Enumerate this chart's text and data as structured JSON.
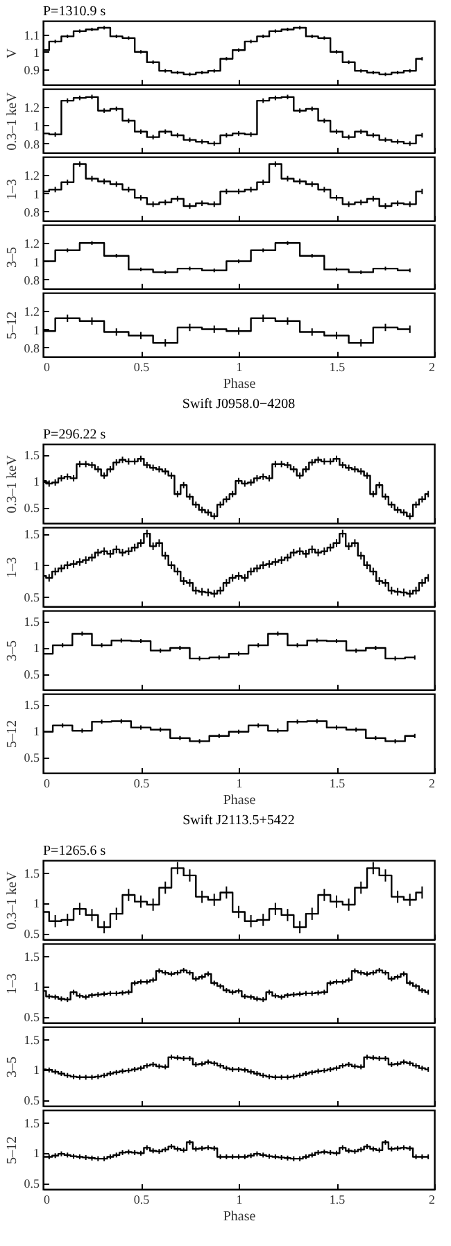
{
  "chart_data": [
    {
      "type": "step",
      "subtitle": "P=1310.9 s",
      "ylabel": "V",
      "tick_labels": "y",
      "color": "#000000",
      "xlim": [
        0,
        2
      ],
      "xticks": [
        0,
        0.5,
        1,
        1.5,
        2
      ],
      "ylim": [
        0.81,
        1.18
      ],
      "yticks": [
        0.9,
        1,
        1.1
      ],
      "x": [
        0,
        0.0625,
        0.125,
        0.1875,
        0.25,
        0.3125,
        0.375,
        0.4375,
        0.5,
        0.5625,
        0.625,
        0.6875,
        0.75,
        0.8125,
        0.875,
        0.9375,
        1,
        1.0625,
        1.125,
        1.1875,
        1.25,
        1.3125,
        1.375,
        1.4375,
        1.5,
        1.5625,
        1.625,
        1.6875,
        1.75,
        1.8125,
        1.875,
        1.9375
      ],
      "values": [
        1.01,
        1.06,
        1.09,
        1.12,
        1.13,
        1.14,
        1.09,
        1.08,
        1.0,
        0.94,
        0.89,
        0.88,
        0.87,
        0.88,
        0.89,
        0.96,
        1.01,
        1.06,
        1.09,
        1.12,
        1.13,
        1.14,
        1.09,
        1.08,
        1.0,
        0.94,
        0.89,
        0.88,
        0.87,
        0.88,
        0.89,
        0.96
      ],
      "errors": [
        null,
        0.01,
        0.01,
        0.01,
        0.01,
        0.01,
        0.01,
        0.01,
        0.01,
        0.01,
        0.01,
        0.01,
        0.01,
        0.01,
        0.01,
        0.01,
        0.01,
        0.01,
        0.01,
        0.01,
        0.01,
        0.01,
        0.01,
        0.01,
        0.01,
        0.01,
        0.01,
        0.01,
        0.01,
        0.01,
        0.01,
        0.01
      ]
    },
    {
      "type": "step",
      "ylabel": "0.3–1 keV",
      "tick_labels": "y",
      "color": "#000000",
      "xlim": [
        0,
        2
      ],
      "xticks": [
        0,
        0.5,
        1,
        1.5,
        2
      ],
      "ylim": [
        0.7,
        1.4
      ],
      "yticks": [
        0.8,
        1,
        1.2
      ],
      "x": [
        0,
        0.0625,
        0.125,
        0.1875,
        0.25,
        0.3125,
        0.375,
        0.4375,
        0.5,
        0.5625,
        0.625,
        0.6875,
        0.75,
        0.8125,
        0.875,
        0.9375,
        1,
        1.0625,
        1.125,
        1.1875,
        1.25,
        1.3125,
        1.375,
        1.4375,
        1.5,
        1.5625,
        1.625,
        1.6875,
        1.75,
        1.8125,
        1.875,
        1.9375
      ],
      "values": [
        0.91,
        0.9,
        1.27,
        1.3,
        1.31,
        1.16,
        1.18,
        1.05,
        0.93,
        0.87,
        0.93,
        0.89,
        0.84,
        0.82,
        0.8,
        0.89,
        0.91,
        0.9,
        1.27,
        1.3,
        1.31,
        1.16,
        1.18,
        1.05,
        0.93,
        0.87,
        0.93,
        0.89,
        0.84,
        0.82,
        0.8,
        0.89
      ],
      "errors": [
        null,
        0.025,
        0.025,
        0.025,
        0.025,
        0.025,
        0.025,
        0.025,
        0.025,
        0.025,
        0.025,
        0.025,
        0.025,
        0.025,
        0.025,
        0.025,
        0.025,
        0.025,
        0.025,
        0.025,
        0.025,
        0.025,
        0.025,
        0.025,
        0.025,
        0.025,
        0.025,
        0.025,
        0.025,
        0.025,
        0.025,
        0.025
      ]
    },
    {
      "type": "step",
      "ylabel": "1–3",
      "tick_labels": "y",
      "color": "#000000",
      "xlim": [
        0,
        2
      ],
      "xticks": [
        0,
        0.5,
        1,
        1.5,
        2
      ],
      "ylim": [
        0.7,
        1.4
      ],
      "yticks": [
        0.8,
        1,
        1.2
      ],
      "x": [
        0,
        0.0625,
        0.125,
        0.1875,
        0.25,
        0.3125,
        0.375,
        0.4375,
        0.5,
        0.5625,
        0.625,
        0.6875,
        0.75,
        0.8125,
        0.875,
        0.9375,
        1,
        1.0625,
        1.125,
        1.1875,
        1.25,
        1.3125,
        1.375,
        1.4375,
        1.5,
        1.5625,
        1.625,
        1.6875,
        1.75,
        1.8125,
        1.875,
        1.9375
      ],
      "values": [
        1.02,
        1.04,
        1.12,
        1.32,
        1.16,
        1.13,
        1.1,
        1.04,
        0.95,
        0.88,
        0.9,
        0.94,
        0.86,
        0.89,
        0.88,
        1.02,
        1.02,
        1.04,
        1.12,
        1.32,
        1.16,
        1.13,
        1.1,
        1.04,
        0.95,
        0.88,
        0.9,
        0.94,
        0.86,
        0.89,
        0.88,
        1.02
      ],
      "errors": [
        null,
        0.03,
        0.03,
        0.03,
        0.03,
        0.03,
        0.03,
        0.03,
        0.03,
        0.03,
        0.03,
        0.03,
        0.03,
        0.03,
        0.03,
        0.03,
        0.03,
        0.03,
        0.03,
        0.03,
        0.03,
        0.03,
        0.03,
        0.03,
        0.03,
        0.03,
        0.03,
        0.03,
        0.03,
        0.03,
        0.03,
        0.03
      ]
    },
    {
      "type": "step",
      "ylabel": "3–5",
      "tick_labels": "y",
      "color": "#000000",
      "xlim": [
        0,
        2
      ],
      "xticks": [
        0,
        0.5,
        1,
        1.5,
        2
      ],
      "ylim": [
        0.7,
        1.4
      ],
      "yticks": [
        0.8,
        1,
        1.2
      ],
      "x": [
        0,
        0.125,
        0.25,
        0.375,
        0.5,
        0.625,
        0.75,
        0.875,
        1,
        1.125,
        1.25,
        1.375,
        1.5,
        1.625,
        1.75,
        1.875
      ],
      "values": [
        1.0,
        1.12,
        1.2,
        1.06,
        0.91,
        0.88,
        0.92,
        0.9,
        1.0,
        1.12,
        1.2,
        1.06,
        0.91,
        0.88,
        0.92,
        0.9
      ],
      "errors": [
        null,
        0.02,
        0.02,
        0.02,
        0.02,
        0.02,
        0.02,
        0.02,
        0.02,
        0.02,
        0.02,
        0.02,
        0.02,
        0.02,
        0.02,
        0.02
      ]
    },
    {
      "type": "step",
      "ylabel": "5–12",
      "xlabel": "Phase",
      "color": "#000000",
      "xlim": [
        0,
        2
      ],
      "xticks": [
        0,
        0.5,
        1,
        1.5,
        2
      ],
      "ylim": [
        0.7,
        1.4
      ],
      "yticks": [
        0.8,
        1,
        1.2
      ],
      "x": [
        0,
        0.125,
        0.25,
        0.375,
        0.5,
        0.625,
        0.75,
        0.875,
        1,
        1.125,
        1.25,
        1.375,
        1.5,
        1.625,
        1.75,
        1.875
      ],
      "values": [
        0.98,
        1.12,
        1.09,
        0.97,
        0.93,
        0.85,
        1.02,
        1.0,
        0.98,
        1.12,
        1.09,
        0.97,
        0.93,
        0.85,
        1.02,
        1.0
      ],
      "errors": [
        null,
        0.04,
        0.04,
        0.04,
        0.04,
        0.04,
        0.04,
        0.04,
        0.04,
        0.04,
        0.04,
        0.04,
        0.04,
        0.04,
        0.04,
        0.04
      ]
    },
    {
      "type": "step",
      "title": "Swift J0958.0−4208",
      "subtitle": "P=296.22 s",
      "ylabel": "0.3–1 keV",
      "tick_labels": "y",
      "color": "#000000",
      "xlim": [
        0,
        2
      ],
      "xticks": [
        0,
        0.5,
        1,
        1.5,
        2
      ],
      "ylim": [
        0.2,
        1.7
      ],
      "yticks": [
        0.5,
        1,
        1.5
      ],
      "x": [
        0,
        0.03125,
        0.0625,
        0.09375,
        0.125,
        0.15625,
        0.1875,
        0.21875,
        0.25,
        0.28125,
        0.3125,
        0.34375,
        0.375,
        0.40625,
        0.4375,
        0.46875,
        0.5,
        0.53125,
        0.5625,
        0.59375,
        0.625,
        0.65625,
        0.6875,
        0.71875,
        0.75,
        0.78125,
        0.8125,
        0.84375,
        0.875,
        0.90625,
        0.9375,
        0.96875,
        1,
        1.03125,
        1.0625,
        1.09375,
        1.125,
        1.15625,
        1.1875,
        1.21875,
        1.25,
        1.28125,
        1.3125,
        1.34375,
        1.375,
        1.40625,
        1.4375,
        1.46875,
        1.5,
        1.53125,
        1.5625,
        1.59375,
        1.625,
        1.65625,
        1.6875,
        1.71875,
        1.75,
        1.78125,
        1.8125,
        1.84375,
        1.875,
        1.90625,
        1.9375,
        1.96875
      ],
      "values": [
        1.0,
        0.95,
        0.97,
        1.05,
        1.08,
        1.05,
        1.32,
        1.32,
        1.3,
        1.22,
        1.1,
        1.22,
        1.35,
        1.4,
        1.37,
        1.37,
        1.42,
        1.3,
        1.25,
        1.22,
        1.18,
        1.1,
        0.75,
        0.92,
        0.7,
        0.55,
        0.45,
        0.4,
        0.33,
        0.55,
        0.65,
        0.75,
        1.0,
        0.95,
        0.97,
        1.05,
        1.08,
        1.05,
        1.32,
        1.32,
        1.3,
        1.22,
        1.1,
        1.22,
        1.35,
        1.4,
        1.37,
        1.37,
        1.42,
        1.3,
        1.25,
        1.22,
        1.18,
        1.1,
        0.75,
        0.92,
        0.7,
        0.55,
        0.45,
        0.4,
        0.33,
        0.55,
        0.65,
        0.75
      ],
      "errors": [
        null,
        0.06,
        0.06,
        0.06,
        0.06,
        0.06,
        0.06,
        0.06,
        0.06,
        0.06,
        0.06,
        0.06,
        0.06,
        0.06,
        0.06,
        0.06,
        0.06,
        0.06,
        0.06,
        0.06,
        0.06,
        0.06,
        0.06,
        0.06,
        0.06,
        0.06,
        0.06,
        0.06,
        0.06,
        0.06,
        0.06,
        0.06,
        0.06,
        0.06,
        0.06,
        0.06,
        0.06,
        0.06,
        0.06,
        0.06,
        0.06,
        0.06,
        0.06,
        0.06,
        0.06,
        0.06,
        0.06,
        0.06,
        0.06,
        0.06,
        0.06,
        0.06,
        0.06,
        0.06,
        0.06,
        0.06,
        0.06,
        0.06,
        0.06,
        0.06,
        0.06,
        0.06,
        0.06,
        0.06
      ]
    },
    {
      "type": "step",
      "ylabel": "1–3",
      "tick_labels": "y",
      "color": "#000000",
      "xlim": [
        0,
        2
      ],
      "xticks": [
        0,
        0.5,
        1,
        1.5,
        2
      ],
      "ylim": [
        0.35,
        1.6
      ],
      "yticks": [
        0.5,
        1,
        1.5
      ],
      "x": [
        0,
        0.03125,
        0.0625,
        0.09375,
        0.125,
        0.15625,
        0.1875,
        0.21875,
        0.25,
        0.28125,
        0.3125,
        0.34375,
        0.375,
        0.40625,
        0.4375,
        0.46875,
        0.5,
        0.53125,
        0.5625,
        0.59375,
        0.625,
        0.65625,
        0.6875,
        0.71875,
        0.75,
        0.78125,
        0.8125,
        0.84375,
        0.875,
        0.90625,
        0.9375,
        0.96875,
        1,
        1.03125,
        1.0625,
        1.09375,
        1.125,
        1.15625,
        1.1875,
        1.21875,
        1.25,
        1.28125,
        1.3125,
        1.34375,
        1.375,
        1.40625,
        1.4375,
        1.46875,
        1.5,
        1.53125,
        1.5625,
        1.59375,
        1.625,
        1.65625,
        1.6875,
        1.71875,
        1.75,
        1.78125,
        1.8125,
        1.84375,
        1.875,
        1.90625,
        1.9375,
        1.96875
      ],
      "values": [
        0.83,
        0.8,
        0.9,
        0.95,
        1.0,
        1.02,
        1.05,
        1.08,
        1.12,
        1.2,
        1.22,
        1.18,
        1.25,
        1.2,
        1.22,
        1.28,
        1.35,
        1.5,
        1.3,
        1.35,
        1.15,
        1.0,
        0.9,
        0.75,
        0.72,
        0.6,
        0.58,
        0.57,
        0.55,
        0.6,
        0.72,
        0.8,
        0.83,
        0.8,
        0.9,
        0.95,
        1.0,
        1.02,
        1.05,
        1.08,
        1.12,
        1.2,
        1.22,
        1.18,
        1.25,
        1.2,
        1.22,
        1.28,
        1.35,
        1.5,
        1.3,
        1.35,
        1.15,
        1.0,
        0.9,
        0.75,
        0.72,
        0.6,
        0.58,
        0.57,
        0.55,
        0.6,
        0.72,
        0.8
      ],
      "errors": [
        null,
        0.06,
        0.06,
        0.06,
        0.06,
        0.06,
        0.06,
        0.06,
        0.06,
        0.06,
        0.06,
        0.06,
        0.06,
        0.06,
        0.06,
        0.06,
        0.06,
        0.06,
        0.06,
        0.06,
        0.06,
        0.06,
        0.06,
        0.06,
        0.06,
        0.06,
        0.06,
        0.06,
        0.06,
        0.06,
        0.06,
        0.06,
        0.06,
        0.06,
        0.06,
        0.06,
        0.06,
        0.06,
        0.06,
        0.06,
        0.06,
        0.06,
        0.06,
        0.06,
        0.06,
        0.06,
        0.06,
        0.06,
        0.06,
        0.06,
        0.06,
        0.06,
        0.06,
        0.06,
        0.06,
        0.06,
        0.06,
        0.06,
        0.06,
        0.06,
        0.06,
        0.06,
        0.06,
        0.06
      ]
    },
    {
      "type": "step",
      "ylabel": "3–5",
      "tick_labels": "y",
      "color": "#000000",
      "xlim": [
        0,
        2
      ],
      "xticks": [
        0,
        0.5,
        1,
        1.5,
        2
      ],
      "ylim": [
        0.2,
        1.7
      ],
      "yticks": [
        0.5,
        1,
        1.5
      ],
      "x": [
        0,
        0.1,
        0.2,
        0.3,
        0.4,
        0.5,
        0.6,
        0.7,
        0.8,
        0.9,
        1,
        1.1,
        1.2,
        1.3,
        1.4,
        1.5,
        1.6,
        1.7,
        1.8,
        1.9
      ],
      "values": [
        0.88,
        1.04,
        1.26,
        1.04,
        1.13,
        1.12,
        0.94,
        0.99,
        0.79,
        0.81,
        0.88,
        1.04,
        1.26,
        1.04,
        1.13,
        1.12,
        0.94,
        0.99,
        0.79,
        0.81
      ],
      "errors": [
        null,
        0.04,
        0.04,
        0.04,
        0.04,
        0.04,
        0.04,
        0.04,
        0.04,
        0.04,
        0.04,
        0.04,
        0.04,
        0.04,
        0.04,
        0.04,
        0.04,
        0.04,
        0.04,
        0.04
      ]
    },
    {
      "type": "step",
      "ylabel": "5–12",
      "xlabel": "Phase",
      "color": "#000000",
      "xlim": [
        0,
        2
      ],
      "xticks": [
        0,
        0.5,
        1,
        1.5,
        2
      ],
      "ylim": [
        0.2,
        1.7
      ],
      "yticks": [
        0.5,
        1,
        1.5
      ],
      "x": [
        0,
        0.1,
        0.2,
        0.3,
        0.4,
        0.5,
        0.6,
        0.7,
        0.8,
        0.9,
        1,
        1.1,
        1.2,
        1.3,
        1.4,
        1.5,
        1.6,
        1.7,
        1.8,
        1.9
      ],
      "values": [
        0.98,
        1.1,
        1.0,
        1.17,
        1.18,
        1.06,
        1.02,
        0.86,
        0.8,
        0.9,
        0.98,
        1.1,
        1.0,
        1.17,
        1.18,
        1.06,
        1.02,
        0.86,
        0.8,
        0.9
      ],
      "errors": [
        null,
        0.04,
        0.04,
        0.04,
        0.04,
        0.04,
        0.04,
        0.04,
        0.04,
        0.04,
        0.04,
        0.04,
        0.04,
        0.04,
        0.04,
        0.04,
        0.04,
        0.04,
        0.04,
        0.04
      ]
    },
    {
      "type": "step",
      "title": "Swift J2113.5+5422",
      "subtitle": "P=1265.6 s",
      "ylabel": "0.3–1 keV",
      "tick_labels": "y",
      "color": "#000000",
      "xlim": [
        0,
        2
      ],
      "xticks": [
        0,
        0.5,
        1,
        1.5,
        2
      ],
      "ylim": [
        0.4,
        1.7
      ],
      "yticks": [
        0.5,
        1,
        1.5
      ],
      "x": [
        0,
        0.0625,
        0.125,
        0.1875,
        0.25,
        0.3125,
        0.375,
        0.4375,
        0.5,
        0.5625,
        0.625,
        0.6875,
        0.75,
        0.8125,
        0.875,
        0.9375,
        1,
        1.0625,
        1.125,
        1.1875,
        1.25,
        1.3125,
        1.375,
        1.4375,
        1.5,
        1.5625,
        1.625,
        1.6875,
        1.75,
        1.8125,
        1.875,
        1.9375
      ],
      "values": [
        0.85,
        0.7,
        0.72,
        0.9,
        0.8,
        0.6,
        0.82,
        1.13,
        1.02,
        0.97,
        1.25,
        1.57,
        1.45,
        1.1,
        1.05,
        1.17,
        0.85,
        0.7,
        0.72,
        0.9,
        0.8,
        0.6,
        0.82,
        1.13,
        1.02,
        0.97,
        1.25,
        1.57,
        1.45,
        1.1,
        1.05,
        1.17
      ],
      "errors": [
        null,
        0.1,
        0.1,
        0.1,
        0.1,
        0.1,
        0.1,
        0.1,
        0.1,
        0.1,
        0.1,
        0.1,
        0.1,
        0.1,
        0.1,
        0.1,
        0.1,
        0.1,
        0.1,
        0.1,
        0.1,
        0.1,
        0.1,
        0.1,
        0.1,
        0.1,
        0.1,
        0.1,
        0.1,
        0.1,
        0.1,
        0.1
      ]
    },
    {
      "type": "step",
      "ylabel": "1–3",
      "tick_labels": "y",
      "color": "#000000",
      "xlim": [
        0,
        2
      ],
      "xticks": [
        0,
        0.5,
        1,
        1.5,
        2
      ],
      "ylim": [
        0.4,
        1.7
      ],
      "yticks": [
        0.5,
        1,
        1.5
      ],
      "x": [
        0,
        0.03125,
        0.0625,
        0.09375,
        0.125,
        0.15625,
        0.1875,
        0.21875,
        0.25,
        0.28125,
        0.3125,
        0.34375,
        0.375,
        0.40625,
        0.4375,
        0.46875,
        0.5,
        0.53125,
        0.5625,
        0.59375,
        0.625,
        0.65625,
        0.6875,
        0.71875,
        0.75,
        0.78125,
        0.8125,
        0.84375,
        0.875,
        0.90625,
        0.9375,
        0.96875,
        1,
        1.03125,
        1.0625,
        1.09375,
        1.125,
        1.15625,
        1.1875,
        1.21875,
        1.25,
        1.28125,
        1.3125,
        1.34375,
        1.375,
        1.40625,
        1.4375,
        1.46875,
        1.5,
        1.53125,
        1.5625,
        1.59375,
        1.625,
        1.65625,
        1.6875,
        1.71875,
        1.75,
        1.78125,
        1.8125,
        1.84375,
        1.875,
        1.90625,
        1.9375,
        1.96875
      ],
      "values": [
        0.92,
        0.83,
        0.82,
        0.79,
        0.78,
        0.9,
        0.84,
        0.82,
        0.85,
        0.86,
        0.87,
        0.88,
        0.88,
        0.89,
        0.9,
        1.05,
        1.07,
        1.07,
        1.1,
        1.25,
        1.22,
        1.2,
        1.22,
        1.26,
        1.22,
        1.12,
        1.15,
        1.2,
        1.05,
        1.0,
        0.93,
        0.9,
        0.92,
        0.83,
        0.82,
        0.79,
        0.78,
        0.9,
        0.84,
        0.82,
        0.85,
        0.86,
        0.87,
        0.88,
        0.88,
        0.89,
        0.9,
        1.05,
        1.07,
        1.07,
        1.1,
        1.25,
        1.22,
        1.2,
        1.22,
        1.26,
        1.22,
        1.12,
        1.15,
        1.2,
        1.05,
        1.0,
        0.93,
        0.9
      ],
      "errors": [
        null,
        0.04,
        0.04,
        0.04,
        0.04,
        0.04,
        0.04,
        0.04,
        0.04,
        0.04,
        0.04,
        0.04,
        0.04,
        0.04,
        0.04,
        0.04,
        0.04,
        0.04,
        0.04,
        0.04,
        0.04,
        0.04,
        0.04,
        0.04,
        0.04,
        0.04,
        0.04,
        0.04,
        0.04,
        0.04,
        0.04,
        0.04,
        0.04,
        0.04,
        0.04,
        0.04,
        0.04,
        0.04,
        0.04,
        0.04,
        0.04,
        0.04,
        0.04,
        0.04,
        0.04,
        0.04,
        0.04,
        0.04,
        0.04,
        0.04,
        0.04,
        0.04,
        0.04,
        0.04,
        0.04,
        0.04,
        0.04,
        0.04,
        0.04,
        0.04,
        0.04,
        0.04,
        0.04,
        0.04
      ]
    },
    {
      "type": "step",
      "ylabel": "3–5",
      "tick_labels": "y",
      "color": "#000000",
      "xlim": [
        0,
        2
      ],
      "xticks": [
        0,
        0.5,
        1,
        1.5,
        2
      ],
      "ylim": [
        0.4,
        1.7
      ],
      "yticks": [
        0.5,
        1,
        1.5
      ],
      "x": [
        0,
        0.03125,
        0.0625,
        0.09375,
        0.125,
        0.15625,
        0.1875,
        0.21875,
        0.25,
        0.28125,
        0.3125,
        0.34375,
        0.375,
        0.40625,
        0.4375,
        0.46875,
        0.5,
        0.53125,
        0.5625,
        0.59375,
        0.625,
        0.65625,
        0.6875,
        0.71875,
        0.75,
        0.78125,
        0.8125,
        0.84375,
        0.875,
        0.90625,
        0.9375,
        0.96875,
        1,
        1.03125,
        1.0625,
        1.09375,
        1.125,
        1.15625,
        1.1875,
        1.21875,
        1.25,
        1.28125,
        1.3125,
        1.34375,
        1.375,
        1.40625,
        1.4375,
        1.46875,
        1.5,
        1.53125,
        1.5625,
        1.59375,
        1.625,
        1.65625,
        1.6875,
        1.71875,
        1.75,
        1.78125,
        1.8125,
        1.84375,
        1.875,
        1.90625,
        1.9375,
        1.96875
      ],
      "values": [
        1.0,
        0.99,
        0.96,
        0.93,
        0.9,
        0.88,
        0.87,
        0.87,
        0.87,
        0.88,
        0.9,
        0.93,
        0.95,
        0.97,
        0.98,
        1.0,
        1.02,
        1.06,
        1.08,
        1.05,
        1.04,
        1.2,
        1.19,
        1.18,
        1.18,
        1.08,
        1.09,
        1.12,
        1.1,
        1.06,
        1.02,
        1.0,
        1.0,
        0.99,
        0.96,
        0.93,
        0.9,
        0.88,
        0.87,
        0.87,
        0.87,
        0.88,
        0.9,
        0.93,
        0.95,
        0.97,
        0.98,
        1.0,
        1.02,
        1.06,
        1.08,
        1.05,
        1.04,
        1.2,
        1.19,
        1.18,
        1.18,
        1.08,
        1.09,
        1.12,
        1.1,
        1.06,
        1.02,
        1.0
      ],
      "errors": [
        null,
        0.04,
        0.04,
        0.04,
        0.04,
        0.04,
        0.04,
        0.04,
        0.04,
        0.04,
        0.04,
        0.04,
        0.04,
        0.04,
        0.04,
        0.04,
        0.04,
        0.04,
        0.04,
        0.04,
        0.04,
        0.04,
        0.04,
        0.04,
        0.04,
        0.04,
        0.04,
        0.04,
        0.04,
        0.04,
        0.04,
        0.04,
        0.04,
        0.04,
        0.04,
        0.04,
        0.04,
        0.04,
        0.04,
        0.04,
        0.04,
        0.04,
        0.04,
        0.04,
        0.04,
        0.04,
        0.04,
        0.04,
        0.04,
        0.04,
        0.04,
        0.04,
        0.04,
        0.04,
        0.04,
        0.04,
        0.04,
        0.04,
        0.04,
        0.04,
        0.04,
        0.04,
        0.04,
        0.04
      ]
    },
    {
      "type": "step",
      "ylabel": "5–12",
      "xlabel": "Phase",
      "color": "#000000",
      "xlim": [
        0,
        2
      ],
      "xticks": [
        0,
        0.5,
        1,
        1.5,
        2
      ],
      "ylim": [
        0.4,
        1.7
      ],
      "yticks": [
        0.5,
        1,
        1.5
      ],
      "x": [
        0,
        0.03125,
        0.0625,
        0.09375,
        0.125,
        0.15625,
        0.1875,
        0.21875,
        0.25,
        0.28125,
        0.3125,
        0.34375,
        0.375,
        0.40625,
        0.4375,
        0.46875,
        0.5,
        0.53125,
        0.5625,
        0.59375,
        0.625,
        0.65625,
        0.6875,
        0.71875,
        0.75,
        0.78125,
        0.8125,
        0.84375,
        0.875,
        0.90625,
        0.9375,
        0.96875,
        1,
        1.03125,
        1.0625,
        1.09375,
        1.125,
        1.15625,
        1.1875,
        1.21875,
        1.25,
        1.28125,
        1.3125,
        1.34375,
        1.375,
        1.40625,
        1.4375,
        1.46875,
        1.5,
        1.53125,
        1.5625,
        1.59375,
        1.625,
        1.65625,
        1.6875,
        1.71875,
        1.75,
        1.78125,
        1.8125,
        1.84375,
        1.875,
        1.90625,
        1.9375,
        1.96875
      ],
      "values": [
        0.93,
        0.93,
        0.95,
        0.98,
        0.96,
        0.94,
        0.93,
        0.92,
        0.91,
        0.9,
        0.9,
        0.93,
        0.96,
        1.0,
        1.01,
        1.0,
        0.99,
        1.08,
        1.03,
        1.02,
        1.05,
        1.1,
        1.06,
        1.04,
        1.17,
        1.06,
        1.07,
        1.08,
        1.07,
        0.93,
        0.93,
        0.93,
        0.93,
        0.93,
        0.95,
        0.98,
        0.96,
        0.94,
        0.93,
        0.92,
        0.91,
        0.9,
        0.9,
        0.93,
        0.96,
        1.0,
        1.01,
        1.0,
        0.99,
        1.08,
        1.03,
        1.02,
        1.05,
        1.1,
        1.06,
        1.04,
        1.17,
        1.06,
        1.07,
        1.08,
        1.07,
        0.93,
        0.93,
        0.93
      ],
      "errors": [
        null,
        0.04,
        0.04,
        0.04,
        0.04,
        0.04,
        0.04,
        0.04,
        0.04,
        0.04,
        0.04,
        0.04,
        0.04,
        0.04,
        0.04,
        0.04,
        0.04,
        0.04,
        0.04,
        0.04,
        0.04,
        0.04,
        0.04,
        0.04,
        0.04,
        0.04,
        0.04,
        0.04,
        0.04,
        0.04,
        0.04,
        0.04,
        0.04,
        0.04,
        0.04,
        0.04,
        0.04,
        0.04,
        0.04,
        0.04,
        0.04,
        0.04,
        0.04,
        0.04,
        0.04,
        0.04,
        0.04,
        0.04,
        0.04,
        0.04,
        0.04,
        0.04,
        0.04,
        0.04,
        0.04,
        0.04,
        0.04,
        0.04,
        0.04,
        0.04,
        0.04,
        0.04,
        0.04,
        0.04
      ]
    }
  ]
}
